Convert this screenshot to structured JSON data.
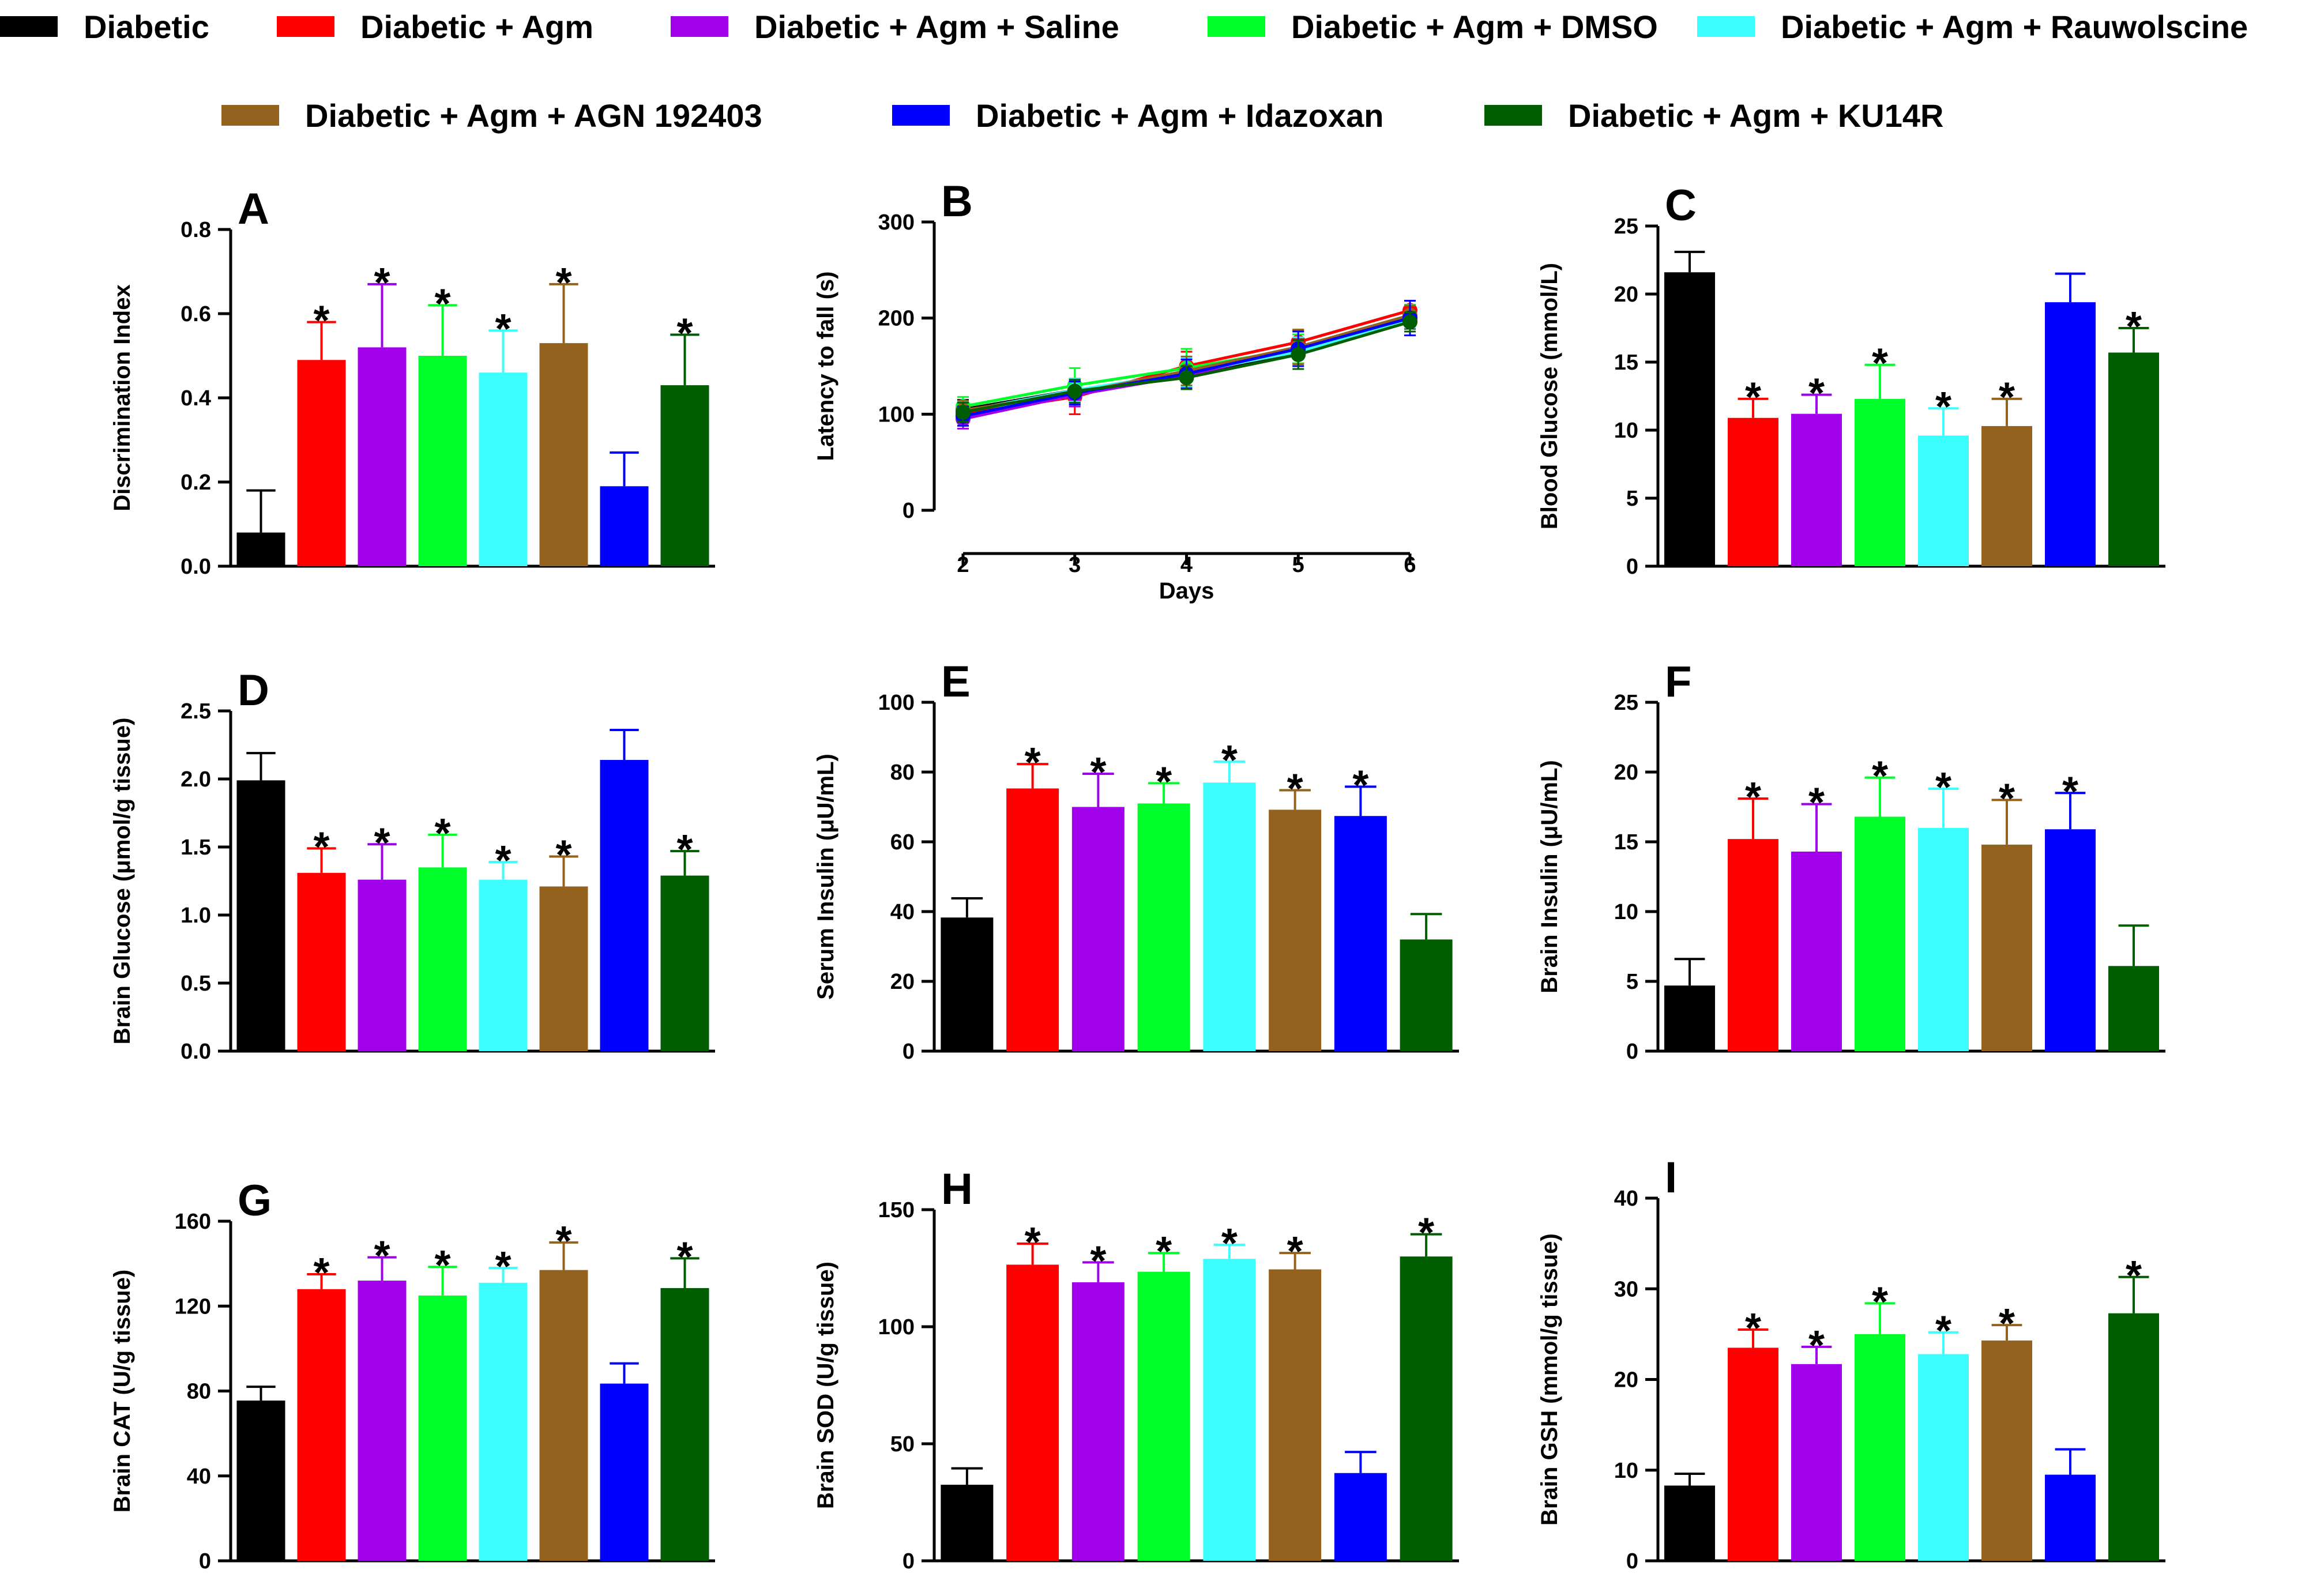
{
  "colors": {
    "Diabetic": "#000000",
    "Diabetic + Agm": "#ff0000",
    "Diabetic + Agm + Saline": "#a100ea",
    "Diabetic + Agm + DMSO": "#00ff2a",
    "Diabetic + Agm + Rauwolscine": "#3cfefe",
    "Diabetic + Agm + AGN 192403": "#93621f",
    "Diabetic + Agm + Idazoxan": "#0000ff",
    "Diabetic + Agm + KU14R": "#005d00"
  },
  "legend": [
    {
      "label": "Diabetic",
      "group": "Diabetic"
    },
    {
      "label": "Diabetic +  Agm",
      "group": "Diabetic + Agm"
    },
    {
      "label": "Diabetic + Agm +  Saline",
      "group": "Diabetic + Agm + Saline"
    },
    {
      "label": "Diabetic +  Agm + DMSO",
      "group": "Diabetic + Agm + DMSO"
    },
    {
      "label": "Diabetic + Agm + Rauwolscine",
      "group": "Diabetic + Agm + Rauwolscine"
    },
    {
      "label": "Diabetic + Agm + AGN 192403",
      "group": "Diabetic + Agm + AGN 192403"
    },
    {
      "label": "Diabetic + Agm + Idazoxan",
      "group": "Diabetic + Agm + Idazoxan"
    },
    {
      "label": "Diabetic + Agm + KU14R",
      "group": "Diabetic + Agm + KU14R"
    }
  ],
  "chart_data": [
    {
      "panel": "A",
      "type": "bar",
      "ylabel": "Discrimination Index",
      "ylim": [
        0,
        0.8
      ],
      "yticks": [
        0.0,
        0.2,
        0.4,
        0.6,
        0.8
      ],
      "ytick_labels": [
        "0.0",
        "0.2",
        "0.4",
        "0.6",
        "0.8"
      ],
      "categories": [
        "Diabetic",
        "Diabetic + Agm",
        "Diabetic + Agm + Saline",
        "Diabetic + Agm + DMSO",
        "Diabetic + Agm + Rauwolscine",
        "Diabetic + Agm + AGN 192403",
        "Diabetic + Agm + Idazoxan",
        "Diabetic + Agm + KU14R"
      ],
      "values": [
        0.08,
        0.49,
        0.52,
        0.5,
        0.46,
        0.53,
        0.19,
        0.43
      ],
      "errors": [
        0.1,
        0.09,
        0.15,
        0.12,
        0.1,
        0.14,
        0.08,
        0.12
      ],
      "significant": [
        false,
        true,
        true,
        true,
        true,
        true,
        false,
        true
      ]
    },
    {
      "panel": "B",
      "type": "line",
      "xlabel": "Days",
      "ylabel": "Latency to fall (s)",
      "x": [
        2,
        3,
        4,
        5,
        6
      ],
      "xlim": [
        2,
        6
      ],
      "xticks": [
        2,
        3,
        4,
        5,
        6
      ],
      "xtick_labels": [
        "2",
        "3",
        "4",
        "5",
        "6"
      ],
      "ylim": [
        0,
        300
      ],
      "yticks": [
        0,
        100,
        200,
        300
      ],
      "ytick_labels": [
        "0",
        "100",
        "200",
        "300"
      ],
      "series": [
        {
          "name": "Diabetic",
          "values": [
            105,
            125,
            140,
            165,
            197
          ],
          "errors": [
            10,
            12,
            12,
            12,
            8
          ]
        },
        {
          "name": "Diabetic + Agm",
          "values": [
            100,
            118,
            150,
            175,
            208
          ],
          "errors": [
            12,
            18,
            15,
            12,
            10
          ]
        },
        {
          "name": "Diabetic + Agm + Saline",
          "values": [
            95,
            120,
            140,
            168,
            200
          ],
          "errors": [
            10,
            12,
            12,
            15,
            8
          ]
        },
        {
          "name": "Diabetic + Agm + DMSO",
          "values": [
            108,
            130,
            148,
            168,
            202
          ],
          "errors": [
            10,
            18,
            20,
            15,
            12
          ]
        },
        {
          "name": "Diabetic + Agm + Rauwolscine",
          "values": [
            103,
            125,
            143,
            165,
            198
          ],
          "errors": [
            10,
            12,
            15,
            15,
            8
          ]
        },
        {
          "name": "Diabetic + Agm + AGN 192403",
          "values": [
            104,
            122,
            145,
            170,
            203
          ],
          "errors": [
            10,
            12,
            15,
            18,
            10
          ]
        },
        {
          "name": "Diabetic + Agm + Idazoxan",
          "values": [
            98,
            122,
            142,
            168,
            200
          ],
          "errors": [
            10,
            12,
            15,
            18,
            18
          ]
        },
        {
          "name": "Diabetic + Agm + KU14R",
          "values": [
            102,
            124,
            138,
            162,
            196
          ],
          "errors": [
            10,
            12,
            12,
            15,
            10
          ]
        }
      ]
    },
    {
      "panel": "C",
      "type": "bar",
      "ylabel": "Blood Glucose (mmol/L)",
      "ylim": [
        0,
        25
      ],
      "yticks": [
        0,
        5,
        10,
        15,
        20,
        25
      ],
      "ytick_labels": [
        "0",
        "5",
        "10",
        "15",
        "20",
        "25"
      ],
      "categories": [
        "Diabetic",
        "Diabetic + Agm",
        "Diabetic + Agm + Saline",
        "Diabetic + Agm + DMSO",
        "Diabetic + Agm + Rauwolscine",
        "Diabetic + Agm + AGN 192403",
        "Diabetic + Agm + Idazoxan",
        "Diabetic + Agm + KU14R"
      ],
      "values": [
        21.6,
        10.9,
        11.2,
        12.3,
        9.6,
        10.3,
        19.4,
        15.7
      ],
      "errors": [
        1.5,
        1.4,
        1.4,
        2.5,
        2.0,
        2.0,
        2.1,
        1.8
      ],
      "significant": [
        false,
        true,
        true,
        true,
        true,
        true,
        false,
        true
      ]
    },
    {
      "panel": "D",
      "type": "bar",
      "ylabel": "Brain Glucose (μmol/g tissue)",
      "ylim": [
        0,
        2.5
      ],
      "yticks": [
        0.0,
        0.5,
        1.0,
        1.5,
        2.0,
        2.5
      ],
      "ytick_labels": [
        "0.0",
        "0.5",
        "1.0",
        "1.5",
        "2.0",
        "2.5"
      ],
      "categories": [
        "Diabetic",
        "Diabetic + Agm",
        "Diabetic + Agm + Saline",
        "Diabetic + Agm + DMSO",
        "Diabetic + Agm + Rauwolscine",
        "Diabetic + Agm + AGN 192403",
        "Diabetic + Agm + Idazoxan",
        "Diabetic + Agm + KU14R"
      ],
      "values": [
        1.99,
        1.31,
        1.26,
        1.35,
        1.26,
        1.21,
        2.14,
        1.29
      ],
      "errors": [
        0.2,
        0.18,
        0.26,
        0.24,
        0.13,
        0.22,
        0.22,
        0.18
      ],
      "significant": [
        false,
        true,
        true,
        true,
        true,
        true,
        false,
        true
      ]
    },
    {
      "panel": "E",
      "type": "bar",
      "ylabel": "Serum Insulin (μU/mL)",
      "ylim": [
        0,
        100
      ],
      "yticks": [
        0,
        20,
        40,
        60,
        80,
        100
      ],
      "ytick_labels": [
        "0",
        "20",
        "40",
        "60",
        "80",
        "100"
      ],
      "categories": [
        "Diabetic",
        "Diabetic + Agm",
        "Diabetic + Agm + Saline",
        "Diabetic + Agm + DMSO",
        "Diabetic + Agm + Rauwolscine",
        "Diabetic + Agm + AGN 192403",
        "Diabetic + Agm + Idazoxan",
        "Diabetic + Agm + KU14R"
      ],
      "values": [
        38.3,
        75.3,
        70.0,
        71.0,
        77.0,
        69.2,
        67.4,
        32.0
      ],
      "errors": [
        5.5,
        7.0,
        9.5,
        5.8,
        6.0,
        5.6,
        8.4,
        7.3
      ],
      "significant": [
        false,
        true,
        true,
        true,
        true,
        true,
        true,
        false
      ]
    },
    {
      "panel": "F",
      "type": "bar",
      "ylabel": "Brain Insulin (μU/mL)",
      "ylim": [
        0,
        25
      ],
      "yticks": [
        0,
        5,
        10,
        15,
        20,
        25
      ],
      "ytick_labels": [
        "0",
        "5",
        "10",
        "15",
        "20",
        "25"
      ],
      "categories": [
        "Diabetic",
        "Diabetic + Agm",
        "Diabetic + Agm + Saline",
        "Diabetic + Agm + DMSO",
        "Diabetic + Agm + Rauwolscine",
        "Diabetic + Agm + AGN 192403",
        "Diabetic + Agm + Idazoxan",
        "Diabetic + Agm + KU14R"
      ],
      "values": [
        4.7,
        15.2,
        14.3,
        16.8,
        16.0,
        14.8,
        15.9,
        6.1
      ],
      "errors": [
        1.9,
        2.9,
        3.4,
        2.8,
        2.8,
        3.2,
        2.6,
        2.9
      ],
      "significant": [
        false,
        true,
        true,
        true,
        true,
        true,
        true,
        false
      ]
    },
    {
      "panel": "G",
      "type": "bar",
      "ylabel": "Brain CAT (U/g tissue)",
      "ylim": [
        0,
        160
      ],
      "yticks": [
        0,
        40,
        80,
        120,
        160
      ],
      "ytick_labels": [
        "0",
        "40",
        "80",
        "120",
        "160"
      ],
      "categories": [
        "Diabetic",
        "Diabetic + Agm",
        "Diabetic + Agm + Saline",
        "Diabetic + Agm + DMSO",
        "Diabetic + Agm + Rauwolscine",
        "Diabetic + Agm + AGN 192403",
        "Diabetic + Agm + Idazoxan",
        "Diabetic + Agm + KU14R"
      ],
      "values": [
        75.5,
        128.0,
        132.0,
        125.0,
        131.0,
        137.0,
        83.5,
        128.5
      ],
      "errors": [
        6.5,
        7.0,
        11.0,
        13.5,
        7.0,
        13.0,
        9.5,
        14.0
      ],
      "significant": [
        false,
        true,
        true,
        true,
        true,
        true,
        false,
        true
      ]
    },
    {
      "panel": "H",
      "type": "bar",
      "ylabel": "Brain SOD (U/g tissue)",
      "ylim": [
        0,
        150
      ],
      "yticks": [
        0,
        50,
        100,
        150
      ],
      "ytick_labels": [
        "0",
        "50",
        "100",
        "150"
      ],
      "categories": [
        "Diabetic",
        "Diabetic + Agm",
        "Diabetic + Agm + Saline",
        "Diabetic + Agm + DMSO",
        "Diabetic + Agm + Rauwolscine",
        "Diabetic + Agm + AGN 192403",
        "Diabetic + Agm + Idazoxan",
        "Diabetic + Agm + KU14R"
      ],
      "values": [
        32.5,
        126.5,
        119.0,
        123.5,
        129.0,
        124.5,
        37.5,
        130.0
      ],
      "errors": [
        7.0,
        9.0,
        8.5,
        8.0,
        6.0,
        7.0,
        9.0,
        9.5
      ],
      "significant": [
        false,
        true,
        true,
        true,
        true,
        true,
        false,
        true
      ]
    },
    {
      "panel": "I",
      "type": "bar",
      "ylabel": "Brain GSH (mmol/g tissue)",
      "ylim": [
        0,
        40
      ],
      "yticks": [
        0,
        10,
        20,
        30,
        40
      ],
      "ytick_labels": [
        "0",
        "10",
        "20",
        "30",
        "40"
      ],
      "categories": [
        "Diabetic",
        "Diabetic + Agm",
        "Diabetic + Agm + Saline",
        "Diabetic + Agm + DMSO",
        "Diabetic + Agm + Rauwolscine",
        "Diabetic + Agm + AGN 192403",
        "Diabetic + Agm + Idazoxan",
        "Diabetic + Agm + KU14R"
      ],
      "values": [
        8.3,
        23.5,
        21.7,
        25.0,
        22.8,
        24.3,
        9.5,
        27.3
      ],
      "errors": [
        1.3,
        2.0,
        1.9,
        3.4,
        2.4,
        1.7,
        2.8,
        4.0
      ],
      "significant": [
        false,
        true,
        true,
        true,
        true,
        true,
        false,
        true
      ]
    }
  ]
}
